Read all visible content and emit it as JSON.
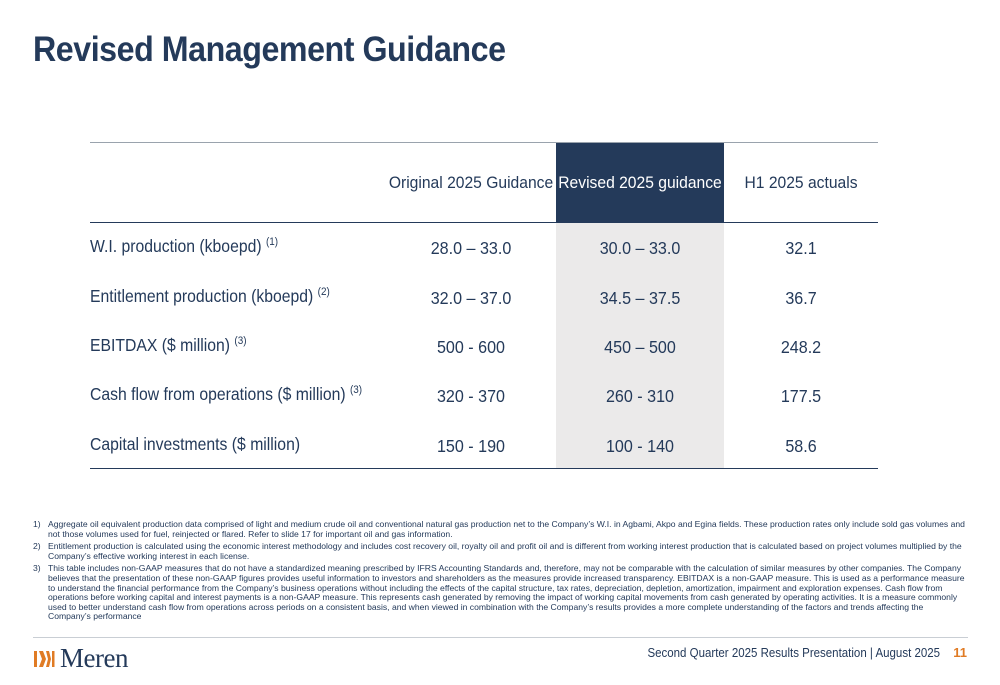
{
  "slide": {
    "title": "Revised Management Guidance"
  },
  "table": {
    "headers": {
      "original": "Original 2025 Guidance",
      "revised": "Revised 2025 guidance",
      "actuals": "H1 2025 actuals"
    },
    "rows": [
      {
        "label": "W.I. production (kboepd)",
        "note": "(1)",
        "original": "28.0 – 33.0",
        "revised": "30.0 – 33.0",
        "actuals": "32.1"
      },
      {
        "label": "Entitlement production (kboepd)",
        "note": "(2)",
        "original": "32.0 – 37.0",
        "revised": "34.5 – 37.5",
        "actuals": "36.7"
      },
      {
        "label": "EBITDAX ($ million)",
        "note": "(3)",
        "original": "500 - 600",
        "revised": "450 – 500",
        "actuals": "248.2"
      },
      {
        "label": "Cash flow from operations ($ million)",
        "note": "(3)",
        "original": "320 - 370",
        "revised": "260 - 310",
        "actuals": "177.5"
      },
      {
        "label": "Capital investments ($ million)",
        "note": "",
        "original": "150 - 190",
        "revised": "100 - 140",
        "actuals": "58.6"
      }
    ]
  },
  "notes": [
    {
      "num": "1)",
      "text": "Aggregate oil equivalent production data comprised of light and medium crude oil and conventional natural gas production net to the Company’s W.I. in Agbami, Akpo and Egina fields. These production rates only include sold gas volumes and not those volumes used for fuel, reinjected or flared. Refer to slide 17 for important oil and gas information."
    },
    {
      "num": "2)",
      "text": "Entitlement production is calculated using the economic interest methodology and includes cost recovery oil, royalty oil and profit oil and is different from working interest production that is calculated based on project volumes multiplied by the Company’s effective working interest in each license."
    },
    {
      "num": "3)",
      "text": "This table includes non-GAAP measures that do not have a standardized meaning prescribed by IFRS Accounting Standards and, therefore, may not be comparable with the calculation of similar measures by other companies. The Company believes that the presentation of these non-GAAP figures provides useful information to investors and shareholders as the measures provide increased transparency. EBITDAX is a non-GAAP measure. This is used as a performance measure to understand the financial performance from the Company’s business operations without including the effects of the capital structure, tax rates, depreciation, depletion, amortization, impairment and exploration expenses. Cash flow from operations before working capital and interest payments is a non-GAAP measure. This represents cash generated by removing the impact of working capital movements from cash generated by operating activities. It is a measure commonly used to better understand cash flow from operations across periods on a consistent basis, and when viewed in combination with the Company’s results provides a more complete understanding of the factors and trends affecting the Company’s performance"
    }
  ],
  "footer": {
    "logo_text": "Meren",
    "presentation": "Second Quarter 2025 Results Presentation | August 2025",
    "page": "11"
  },
  "colors": {
    "navy": "#243a5a",
    "highlight_column": "#ebeaea",
    "accent_orange": "#e07b24"
  }
}
